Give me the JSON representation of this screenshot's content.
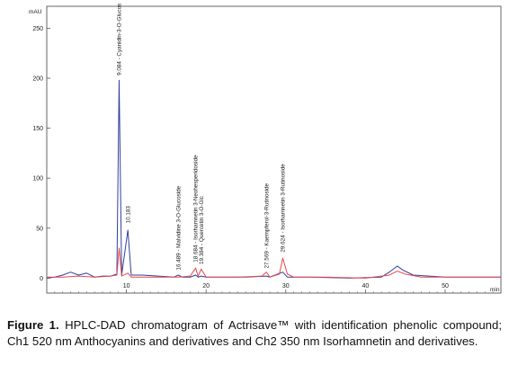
{
  "caption": {
    "figure_label": "Figure 1.",
    "text": "HPLC-DAD chromatogram of Actrisave™ with identification phenolic compound; Ch1 520 nm Anthocyanins and derivatives and Ch2 350 nm Isorhamnetin and derivatives."
  },
  "chart_data": {
    "type": "line",
    "y_unit": "mAU",
    "x_unit": "min",
    "xlim": [
      0,
      57
    ],
    "ylim": [
      -15,
      272
    ],
    "x_ticks": [
      10,
      20,
      30,
      40,
      50
    ],
    "y_ticks": [
      0,
      50,
      100,
      150,
      200,
      250
    ],
    "grid": false,
    "colors": {
      "ch1": "#2e3f9e",
      "ch2": "#e8474c",
      "frame": "#555555"
    },
    "peaks": [
      {
        "label": "9.084 - Cyanidin-3-O-Glucoside",
        "x": 9.08
      },
      {
        "label": "10.183",
        "x": 10.18
      },
      {
        "label": "16.489 - Malvidine 3-O-Glucoside",
        "x": 16.49
      },
      {
        "label": "18.684 - Isorhamnetin 3-Neohesperidoside",
        "x": 18.68
      },
      {
        "label": "19.384 - Quercetin 3-O-Glc",
        "x": 19.38
      },
      {
        "label": "27.569 - Kaempferol-3-Rutinoside",
        "x": 27.57
      },
      {
        "label": "29.624 - Isorhamnetin 3-Rutinoside",
        "x": 29.62
      }
    ],
    "series": [
      {
        "points": [
          [
            0,
            0
          ],
          [
            1,
            1
          ],
          [
            2,
            3
          ],
          [
            3,
            6
          ],
          [
            4,
            3
          ],
          [
            5,
            5
          ],
          [
            6,
            1
          ],
          [
            7,
            2
          ],
          [
            8,
            2
          ],
          [
            8.8,
            4
          ],
          [
            9.08,
            198
          ],
          [
            9.4,
            3
          ],
          [
            10.18,
            48
          ],
          [
            10.6,
            3
          ],
          [
            12,
            3
          ],
          [
            14,
            2
          ],
          [
            16,
            1
          ],
          [
            16.49,
            3
          ],
          [
            17,
            1
          ],
          [
            18,
            1
          ],
          [
            18.68,
            3
          ],
          [
            19,
            1
          ],
          [
            19.38,
            2
          ],
          [
            20,
            1
          ],
          [
            22,
            1
          ],
          [
            25,
            1
          ],
          [
            27.57,
            2
          ],
          [
            28,
            1
          ],
          [
            29.62,
            6
          ],
          [
            30.2,
            1
          ],
          [
            33,
            1
          ],
          [
            38,
            0
          ],
          [
            42,
            1
          ],
          [
            43,
            6
          ],
          [
            44,
            12
          ],
          [
            44.7,
            8
          ],
          [
            46,
            3
          ],
          [
            48,
            2
          ],
          [
            50,
            1
          ],
          [
            55,
            1
          ],
          [
            57,
            1
          ]
        ]
      },
      {
        "points": [
          [
            0,
            1
          ],
          [
            2,
            1
          ],
          [
            4,
            2
          ],
          [
            6,
            1
          ],
          [
            8,
            2
          ],
          [
            8.8,
            3
          ],
          [
            9.08,
            30
          ],
          [
            9.4,
            2
          ],
          [
            10.18,
            5
          ],
          [
            10.6,
            1
          ],
          [
            12,
            1
          ],
          [
            16,
            1
          ],
          [
            16.49,
            1
          ],
          [
            18,
            2
          ],
          [
            18.68,
            10
          ],
          [
            19,
            2
          ],
          [
            19.38,
            9
          ],
          [
            20,
            1
          ],
          [
            24,
            1
          ],
          [
            27,
            2
          ],
          [
            27.57,
            6
          ],
          [
            28,
            1
          ],
          [
            29.2,
            4
          ],
          [
            29.62,
            20
          ],
          [
            30.2,
            4
          ],
          [
            31,
            1
          ],
          [
            35,
            1
          ],
          [
            40,
            0
          ],
          [
            43,
            3
          ],
          [
            44,
            7
          ],
          [
            45,
            4
          ],
          [
            47,
            1
          ],
          [
            52,
            1
          ],
          [
            55,
            1
          ],
          [
            57,
            1
          ]
        ]
      }
    ]
  }
}
